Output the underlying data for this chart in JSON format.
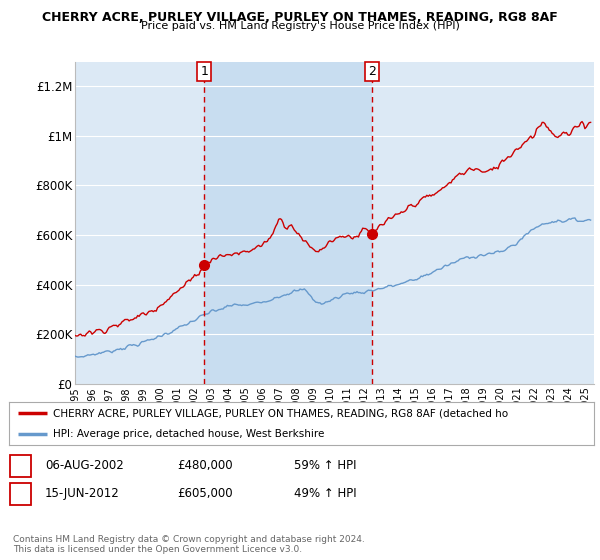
{
  "title": "CHERRY ACRE, PURLEY VILLAGE, PURLEY ON THAMES, READING, RG8 8AF",
  "subtitle": "Price paid vs. HM Land Registry's House Price Index (HPI)",
  "ylabel_ticks": [
    "£0",
    "£200K",
    "£400K",
    "£600K",
    "£800K",
    "£1M",
    "£1.2M"
  ],
  "ytick_values": [
    0,
    200000,
    400000,
    600000,
    800000,
    1000000,
    1200000
  ],
  "ylim": [
    0,
    1300000
  ],
  "xlim_start": 1995.0,
  "xlim_end": 2025.5,
  "background_color": "#ffffff",
  "plot_bg_color": "#dce9f5",
  "highlight_bg_color": "#c8ddf0",
  "grid_color": "#ffffff",
  "red_line_color": "#cc0000",
  "blue_line_color": "#6699cc",
  "vline_color": "#cc0000",
  "marker1_x": 2002.6,
  "marker1_y": 480000,
  "marker2_x": 2012.45,
  "marker2_y": 605000,
  "sale1_label": "1",
  "sale2_label": "2",
  "legend_line1": "CHERRY ACRE, PURLEY VILLAGE, PURLEY ON THAMES, READING, RG8 8AF (detached ho",
  "legend_line2": "HPI: Average price, detached house, West Berkshire",
  "table_row1": [
    "1",
    "06-AUG-2002",
    "£480,000",
    "59% ↑ HPI"
  ],
  "table_row2": [
    "2",
    "15-JUN-2012",
    "£605,000",
    "49% ↑ HPI"
  ],
  "footnote": "Contains HM Land Registry data © Crown copyright and database right 2024.\nThis data is licensed under the Open Government Licence v3.0.",
  "xticks": [
    1995,
    1996,
    1997,
    1998,
    1999,
    2000,
    2001,
    2002,
    2003,
    2004,
    2005,
    2006,
    2007,
    2008,
    2009,
    2010,
    2011,
    2012,
    2013,
    2014,
    2015,
    2016,
    2017,
    2018,
    2019,
    2020,
    2021,
    2022,
    2023,
    2024,
    2025
  ]
}
